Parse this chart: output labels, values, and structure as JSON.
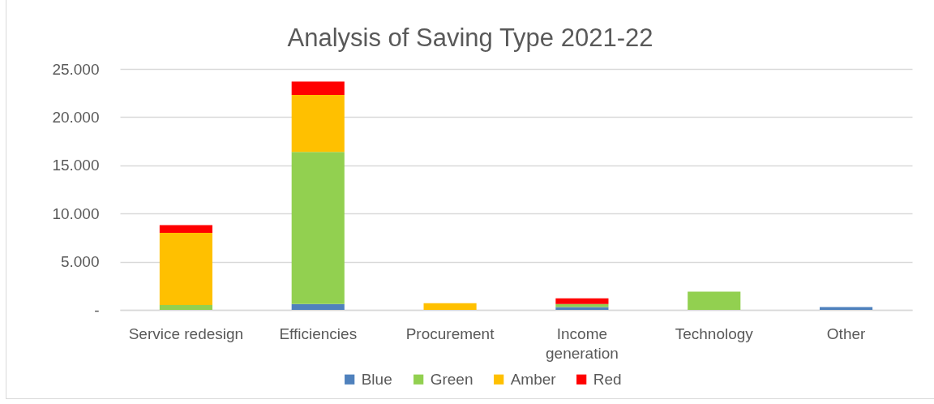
{
  "chart_data": {
    "type": "bar",
    "title": "Analysis of Saving Type 2021-22",
    "categories": [
      "Service redesign",
      "Efficiencies",
      "Procurement",
      "Income generation",
      "Technology",
      "Other"
    ],
    "stacked": true,
    "series": [
      {
        "name": "Blue",
        "color": "#4f81bd",
        "values": [
          null,
          600,
          null,
          300,
          null,
          300
        ]
      },
      {
        "name": "Green",
        "color": "#92d050",
        "values": [
          500,
          15800,
          null,
          300,
          1900,
          null
        ]
      },
      {
        "name": "Amber",
        "color": "#ffc000",
        "values": [
          7500,
          5900,
          700,
          null,
          null,
          null
        ]
      },
      {
        "name": "Red",
        "color": "#ff0000",
        "values": [
          800,
          1400,
          null,
          600,
          null,
          null
        ]
      }
    ],
    "ylim": [
      0,
      25000
    ],
    "yticks": [
      {
        "value": 0,
        "label": "-"
      },
      {
        "value": 5000,
        "label": "5.000"
      },
      {
        "value": 10000,
        "label": "10.000"
      },
      {
        "value": 15000,
        "label": "15.000"
      },
      {
        "value": 20000,
        "label": "20.000"
      },
      {
        "value": 25000,
        "label": "25.000"
      }
    ],
    "grid": "y",
    "legend": "bottom"
  }
}
